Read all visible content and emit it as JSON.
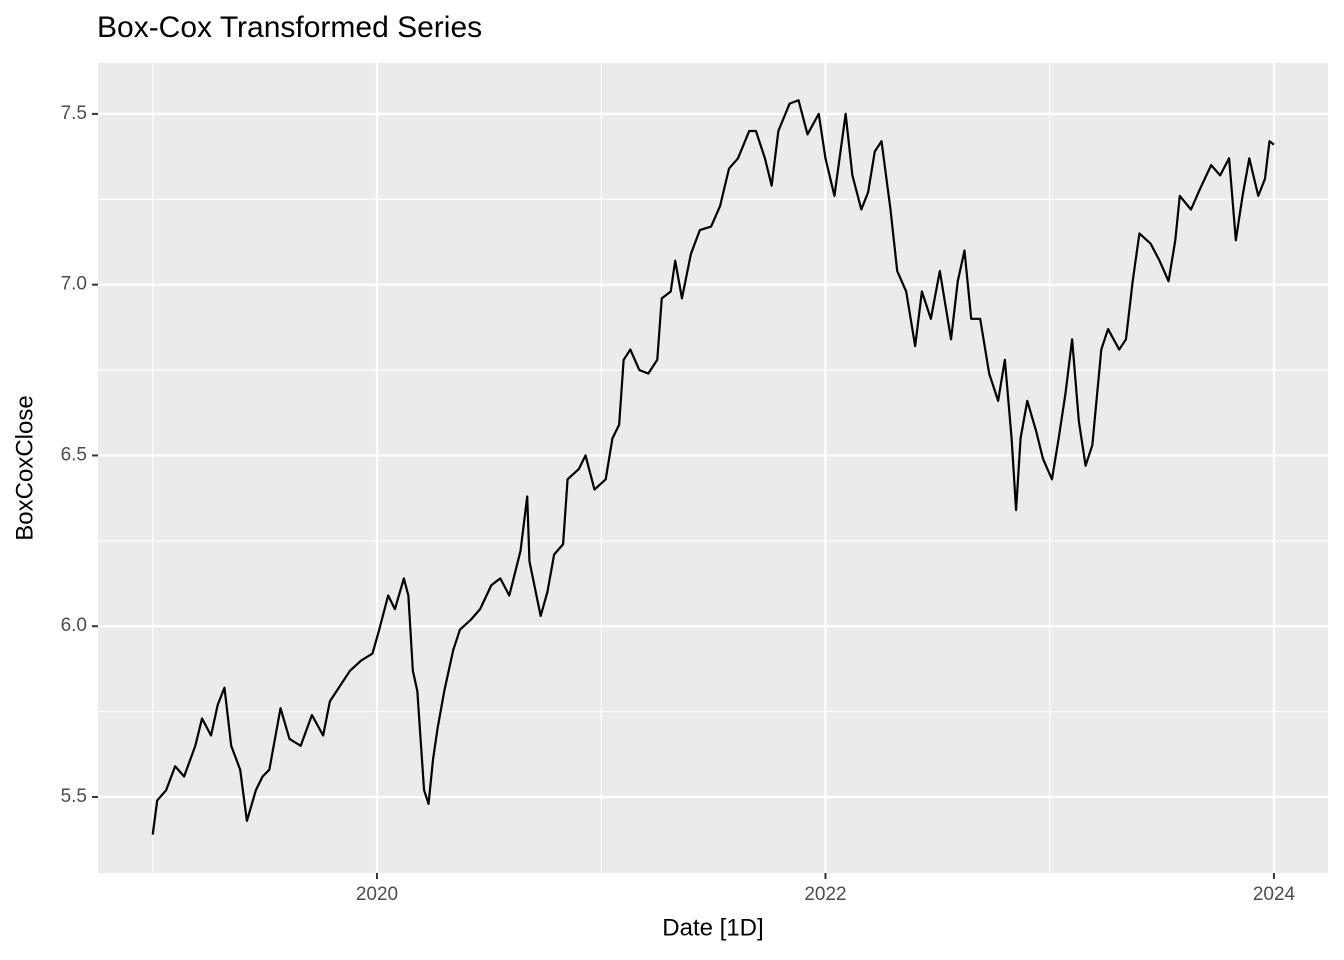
{
  "chart_data": {
    "type": "line",
    "title": "Box-Cox Transformed Series",
    "x_label": "Date [1D]",
    "y_label": "BoxCoxClose",
    "x": [
      2019.0,
      2019.02,
      2019.06,
      2019.1,
      2019.14,
      2019.19,
      2019.22,
      2019.26,
      2019.29,
      2019.32,
      2019.35,
      2019.39,
      2019.42,
      2019.46,
      2019.49,
      2019.52,
      2019.57,
      2019.61,
      2019.66,
      2019.71,
      2019.76,
      2019.79,
      2019.84,
      2019.88,
      2019.93,
      2019.98,
      2020.01,
      2020.05,
      2020.08,
      2020.12,
      2020.14,
      2020.16,
      2020.18,
      2020.21,
      2020.23,
      2020.25,
      2020.27,
      2020.3,
      2020.34,
      2020.37,
      2020.42,
      2020.46,
      2020.51,
      2020.55,
      2020.59,
      2020.64,
      2020.67,
      2020.68,
      2020.73,
      2020.76,
      2020.79,
      2020.83,
      2020.85,
      2020.9,
      2020.93,
      2020.97,
      2021.02,
      2021.05,
      2021.08,
      2021.1,
      2021.13,
      2021.17,
      2021.21,
      2021.25,
      2021.27,
      2021.31,
      2021.33,
      2021.36,
      2021.4,
      2021.44,
      2021.49,
      2021.53,
      2021.57,
      2021.61,
      2021.66,
      2021.69,
      2021.73,
      2021.76,
      2021.79,
      2021.84,
      2021.88,
      2021.92,
      2021.97,
      2022.0,
      2022.04,
      2022.09,
      2022.12,
      2022.16,
      2022.19,
      2022.22,
      2022.25,
      2022.29,
      2022.32,
      2022.36,
      2022.4,
      2022.43,
      2022.47,
      2022.51,
      2022.56,
      2022.59,
      2022.62,
      2022.65,
      2022.69,
      2022.73,
      2022.77,
      2022.8,
      2022.83,
      2022.85,
      2022.87,
      2022.9,
      2022.94,
      2022.97,
      2023.01,
      2023.04,
      2023.07,
      2023.1,
      2023.13,
      2023.16,
      2023.19,
      2023.23,
      2023.26,
      2023.31,
      2023.34,
      2023.37,
      2023.4,
      2023.45,
      2023.49,
      2023.53,
      2023.56,
      2023.58,
      2023.63,
      2023.67,
      2023.72,
      2023.76,
      2023.8,
      2023.83,
      2023.86,
      2023.89,
      2023.93,
      2023.96,
      2023.98,
      2024.0
    ],
    "series": [
      {
        "name": "BoxCoxClose",
        "color": "#000000",
        "values": [
          5.39,
          5.49,
          5.52,
          5.59,
          5.56,
          5.65,
          5.73,
          5.68,
          5.77,
          5.82,
          5.65,
          5.58,
          5.43,
          5.52,
          5.56,
          5.58,
          5.76,
          5.67,
          5.65,
          5.74,
          5.68,
          5.78,
          5.83,
          5.87,
          5.9,
          5.92,
          5.99,
          6.09,
          6.05,
          6.14,
          6.09,
          5.87,
          5.81,
          5.52,
          5.48,
          5.61,
          5.7,
          5.81,
          5.93,
          5.99,
          6.02,
          6.05,
          6.12,
          6.14,
          6.09,
          6.22,
          6.38,
          6.19,
          6.03,
          6.1,
          6.21,
          6.24,
          6.43,
          6.46,
          6.5,
          6.4,
          6.43,
          6.55,
          6.59,
          6.78,
          6.81,
          6.75,
          6.74,
          6.78,
          6.96,
          6.98,
          7.07,
          6.96,
          7.09,
          7.16,
          7.17,
          7.23,
          7.34,
          7.37,
          7.45,
          7.45,
          7.37,
          7.29,
          7.45,
          7.53,
          7.54,
          7.44,
          7.5,
          7.37,
          7.26,
          7.5,
          7.32,
          7.22,
          7.27,
          7.39,
          7.42,
          7.22,
          7.04,
          6.98,
          6.82,
          6.98,
          6.9,
          7.04,
          6.84,
          7.01,
          7.1,
          6.9,
          6.9,
          6.74,
          6.66,
          6.78,
          6.55,
          6.34,
          6.55,
          6.66,
          6.57,
          6.49,
          6.43,
          6.55,
          6.68,
          6.84,
          6.6,
          6.47,
          6.53,
          6.81,
          6.87,
          6.81,
          6.84,
          7.01,
          7.15,
          7.12,
          7.07,
          7.01,
          7.13,
          7.26,
          7.22,
          7.28,
          7.35,
          7.32,
          7.37,
          7.13,
          7.26,
          7.37,
          7.26,
          7.31,
          7.42,
          7.41
        ]
      }
    ],
    "xlim": [
      2018.756,
      2024.241
    ],
    "xticks": [
      2020,
      2022,
      2024
    ],
    "ylim": [
      5.2775,
      7.649
    ],
    "yticks": [
      5.5,
      {
        "value": 6.0,
        "label": "6.0"
      },
      6.5,
      {
        "value": 7.0,
        "label": "7.0"
      },
      7.5
    ],
    "grid": true
  }
}
